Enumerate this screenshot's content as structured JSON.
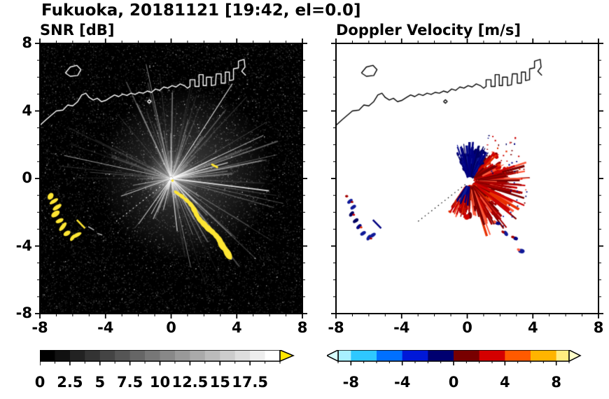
{
  "title": "Fukuoka, 20181121 [19:42, el=0.0]",
  "panels": {
    "snr": {
      "title": "SNR [dB]",
      "bg": "#000000",
      "coast_color": "#ffffff"
    },
    "doppler": {
      "title": "Doppler Velocity [m/s]",
      "bg": "#ffffff",
      "coast_color": "#000000"
    }
  },
  "axes": {
    "xlim": [
      -8,
      8
    ],
    "ylim": [
      -8,
      8
    ],
    "xticks": [
      -8,
      -4,
      0,
      4,
      8
    ],
    "yticks": [
      -8,
      -4,
      0,
      4,
      8
    ],
    "xtick_labels": [
      "-8",
      "-4",
      "0",
      "4",
      "8"
    ],
    "ytick_labels": [
      "-8",
      "-4",
      "0",
      "4",
      "8"
    ],
    "minor_tick_step": 1
  },
  "colorbar_snr": {
    "range": [
      0,
      20
    ],
    "n_steps": 16,
    "minor_step": 1.25,
    "tick_values": [
      0,
      2.5,
      5,
      7.5,
      10,
      12.5,
      15,
      17.5
    ],
    "tick_labels": [
      "0",
      "2.5",
      "5",
      "7.5",
      "10",
      "12.5",
      "15",
      "17.5"
    ],
    "start_color": "#000000",
    "end_color": "#ffffff",
    "over_arrow_color": "#ffe600"
  },
  "colorbar_doppler": {
    "range": [
      -9,
      9
    ],
    "minor_step": 1,
    "segment_edges": [
      -9,
      -8,
      -6,
      -4,
      -2,
      0,
      2,
      4,
      6,
      8,
      9
    ],
    "segment_colors": [
      "#a8f0ff",
      "#2ec8ff",
      "#0070ff",
      "#0018d8",
      "#000070",
      "#780000",
      "#d40000",
      "#ff5a00",
      "#ffb400",
      "#ffec80"
    ],
    "under_arrow_color": "#d8ffff",
    "over_arrow_color": "#ffffc8",
    "tick_values": [
      -8,
      -4,
      0,
      4,
      8
    ],
    "tick_labels": [
      "-8",
      "-4",
      "0",
      "4",
      "8"
    ]
  },
  "chart_data": {
    "type": "heatmap",
    "title": "Fukuoka, 20181121 [19:42, el=0.0]",
    "panels": [
      {
        "name": "SNR",
        "units": "dB",
        "colorbar_range": [
          0,
          17.5
        ]
      },
      {
        "name": "Doppler Velocity",
        "units": "m/s",
        "colorbar_range": [
          -8,
          8
        ]
      }
    ],
    "x_range": [
      -8,
      8
    ],
    "y_range": [
      -8,
      8
    ],
    "radar_center": [
      0,
      0
    ],
    "coastline": [
      [
        [
          -8,
          3.15
        ],
        [
          -7.6,
          3.5
        ],
        [
          -7.3,
          3.75
        ],
        [
          -7.0,
          4.0
        ],
        [
          -6.6,
          4.05
        ],
        [
          -6.3,
          4.35
        ],
        [
          -6.0,
          4.3
        ],
        [
          -5.7,
          4.55
        ],
        [
          -5.45,
          4.95
        ],
        [
          -5.2,
          5.05
        ],
        [
          -5.0,
          4.8
        ],
        [
          -4.75,
          4.65
        ],
        [
          -4.5,
          4.75
        ],
        [
          -4.25,
          4.55
        ],
        [
          -4.0,
          4.62
        ],
        [
          -3.7,
          4.8
        ],
        [
          -3.45,
          4.95
        ],
        [
          -3.2,
          4.85
        ],
        [
          -2.95,
          5.0
        ],
        [
          -2.7,
          4.92
        ],
        [
          -2.45,
          5.05
        ],
        [
          -2.2,
          4.98
        ],
        [
          -1.95,
          5.1
        ],
        [
          -1.7,
          5.05
        ],
        [
          -1.45,
          5.18
        ],
        [
          -1.2,
          5.1
        ],
        [
          -0.95,
          5.3
        ],
        [
          -0.7,
          5.22
        ],
        [
          -0.45,
          5.42
        ],
        [
          -0.2,
          5.35
        ],
        [
          0.05,
          5.5
        ],
        [
          0.3,
          5.42
        ],
        [
          0.55,
          5.6
        ],
        [
          0.8,
          5.5
        ],
        [
          1.0,
          5.35
        ],
        [
          1.15,
          5.45
        ],
        [
          1.15,
          5.85
        ],
        [
          1.45,
          5.85
        ],
        [
          1.45,
          5.45
        ],
        [
          1.7,
          5.45
        ],
        [
          1.7,
          6.15
        ],
        [
          1.95,
          6.15
        ],
        [
          1.95,
          5.5
        ],
        [
          2.15,
          5.5
        ],
        [
          2.15,
          6.0
        ],
        [
          2.45,
          6.0
        ],
        [
          2.45,
          5.5
        ],
        [
          2.7,
          5.55
        ],
        [
          2.75,
          6.2
        ],
        [
          3.05,
          6.2
        ],
        [
          3.05,
          5.65
        ],
        [
          3.3,
          5.65
        ],
        [
          3.3,
          6.3
        ],
        [
          3.55,
          6.3
        ],
        [
          3.55,
          5.8
        ],
        [
          3.8,
          5.85
        ],
        [
          3.8,
          6.5
        ],
        [
          4.1,
          6.55
        ],
        [
          4.1,
          6.95
        ],
        [
          4.45,
          7.05
        ],
        [
          4.5,
          6.6
        ],
        [
          4.3,
          6.35
        ],
        [
          4.55,
          6.1
        ]
      ],
      [
        [
          -6.45,
          6.25
        ],
        [
          -6.15,
          6.6
        ],
        [
          -5.75,
          6.7
        ],
        [
          -5.5,
          6.45
        ],
        [
          -5.7,
          6.1
        ],
        [
          -6.15,
          6.05
        ],
        [
          -6.45,
          6.25
        ]
      ],
      [
        [
          -1.45,
          4.55
        ],
        [
          -1.33,
          4.66
        ],
        [
          -1.22,
          4.56
        ],
        [
          -1.33,
          4.46
        ],
        [
          -1.45,
          4.55
        ]
      ]
    ],
    "snr": {
      "echo_color": "#ffe633",
      "echo_arc": [
        [
          0.35,
          -0.85
        ],
        [
          0.65,
          -1.05
        ],
        [
          0.95,
          -1.3
        ],
        [
          1.2,
          -1.55
        ],
        [
          1.4,
          -1.85
        ],
        [
          1.55,
          -2.15
        ],
        [
          1.75,
          -2.45
        ],
        [
          2.0,
          -2.7
        ],
        [
          2.25,
          -2.95
        ],
        [
          2.5,
          -3.15
        ],
        [
          2.75,
          -3.4
        ],
        [
          2.95,
          -3.65
        ],
        [
          3.1,
          -3.95
        ],
        [
          3.3,
          -4.2
        ],
        [
          3.45,
          -4.45
        ]
      ],
      "west_cluster": [
        [
          -7.35,
          -1.05
        ],
        [
          -7.15,
          -1.35
        ],
        [
          -6.95,
          -1.7
        ],
        [
          -7.05,
          -2.1
        ],
        [
          -6.8,
          -2.5
        ],
        [
          -6.6,
          -2.85
        ],
        [
          -6.35,
          -3.25
        ],
        [
          -6.0,
          -3.5
        ],
        [
          -5.75,
          -3.35
        ]
      ],
      "west_dash": [
        [
          -5.75,
          -2.45
        ],
        [
          -5.25,
          -2.95
        ]
      ],
      "gray_dashes": [
        [
          [
            -5.05,
            -2.85
          ],
          [
            -4.7,
            -3.05
          ]
        ],
        [
          [
            -4.5,
            -3.25
          ],
          [
            -4.2,
            -3.35
          ]
        ]
      ],
      "small_echo": [
        [
          2.45,
          0.85
        ],
        [
          2.85,
          0.65
        ]
      ],
      "dotted_ray_compass_deg": 232
    },
    "doppler": {
      "fan_center": [
        0.15,
        -0.15
      ],
      "outbound_sector_compass_deg": [
        35,
        215
      ],
      "outbound_max_radius_km": 3.7,
      "inbound_sector_compass_deg": [
        -25,
        35
      ],
      "inbound_max_radius_km": 2.4,
      "outbound_colors": [
        "#7a0000",
        "#a30000",
        "#cc0000",
        "#e83000",
        "#ff5a3c"
      ],
      "inbound_colors": [
        "#000060",
        "#000080",
        "#101a99"
      ],
      "west_cluster": [
        [
          -7.35,
          -1.05
        ],
        [
          -7.15,
          -1.35
        ],
        [
          -6.95,
          -1.7
        ],
        [
          -7.05,
          -2.1
        ],
        [
          -6.8,
          -2.5
        ],
        [
          -6.6,
          -2.85
        ],
        [
          -6.35,
          -3.25
        ],
        [
          -6.0,
          -3.5
        ],
        [
          -5.75,
          -3.35
        ]
      ],
      "west_dash": [
        [
          -5.75,
          -2.45
        ],
        [
          -5.25,
          -2.95
        ]
      ],
      "southeast_blobs": [
        [
          1.85,
          -2.65
        ],
        [
          2.35,
          -3.25
        ],
        [
          2.95,
          -3.55
        ],
        [
          3.3,
          -4.3
        ]
      ],
      "scatter_region": {
        "x": [
          1.0,
          3.3
        ],
        "y": [
          0.3,
          2.6
        ]
      },
      "dotted_ray_compass_deg": 232
    }
  }
}
